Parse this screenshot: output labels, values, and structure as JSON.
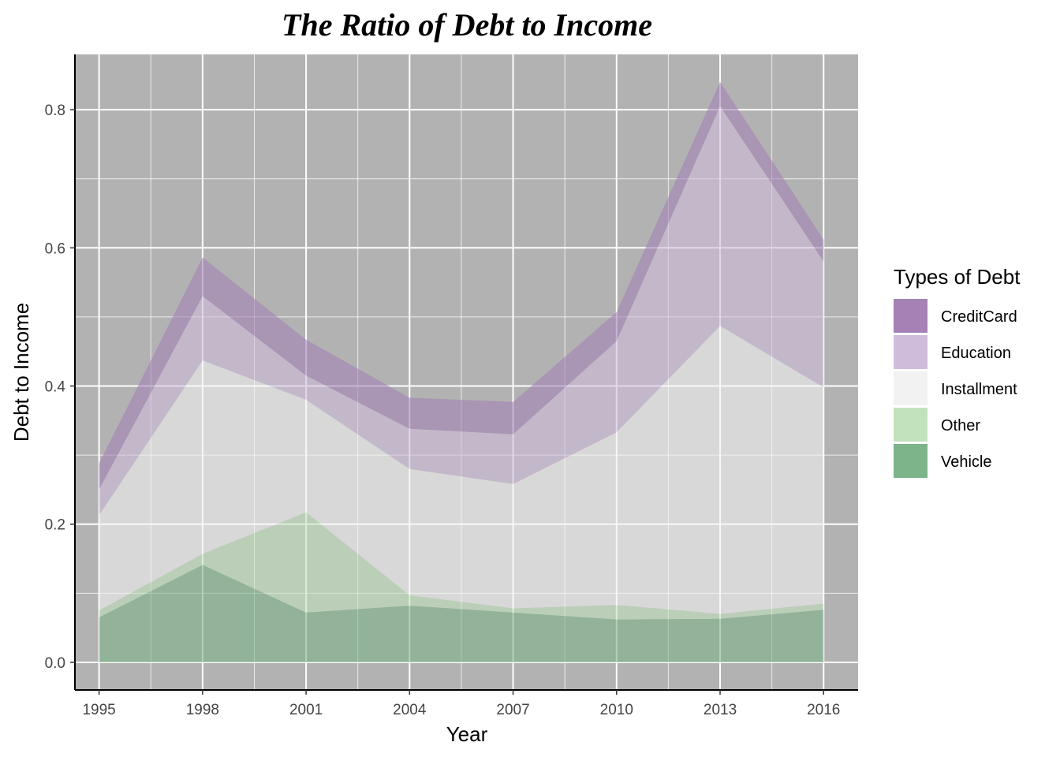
{
  "chart_data": {
    "type": "area",
    "title": "The Ratio of Debt to Income",
    "xlabel": "Year",
    "ylabel": "Debt to Income",
    "x": [
      1995,
      1998,
      2001,
      2004,
      2007,
      2010,
      2013,
      2016
    ],
    "x_tick_labels": [
      "1995",
      "1998",
      "2001",
      "2004",
      "2007",
      "2010",
      "2013",
      "2016"
    ],
    "y_ticks": [
      0.0,
      0.2,
      0.4,
      0.6,
      0.8
    ],
    "y_tick_labels": [
      "0.0",
      "0.2",
      "0.4",
      "0.6",
      "0.8"
    ],
    "xlim": [
      1994.3,
      2017.0
    ],
    "ylim": [
      -0.04,
      0.88
    ],
    "grid": true,
    "panel_background": "#b2b2b2",
    "legend": {
      "title": "Types of Debt",
      "position": "right"
    },
    "series": [
      {
        "name": "CreditCard",
        "color": "#a482b6",
        "lower": [
          0.25,
          0.53,
          0.415,
          0.338,
          0.33,
          0.465,
          0.805,
          0.58
        ],
        "upper": [
          0.288,
          0.586,
          0.467,
          0.383,
          0.377,
          0.507,
          0.84,
          0.612
        ]
      },
      {
        "name": "Education",
        "color": "#cfbcda",
        "lower": [
          0.213,
          0.437,
          0.38,
          0.28,
          0.258,
          0.333,
          0.487,
          0.398
        ],
        "upper": [
          0.25,
          0.53,
          0.415,
          0.338,
          0.33,
          0.465,
          0.805,
          0.58
        ]
      },
      {
        "name": "Installment",
        "color": "#f2f2f2",
        "lower": [
          0.075,
          0.157,
          0.217,
          0.097,
          0.078,
          0.083,
          0.07,
          0.085
        ],
        "upper": [
          0.213,
          0.437,
          0.38,
          0.28,
          0.258,
          0.333,
          0.487,
          0.398
        ]
      },
      {
        "name": "Other",
        "color": "#c2e2bd",
        "lower": [
          0.065,
          0.141,
          0.072,
          0.082,
          0.072,
          0.062,
          0.063,
          0.076
        ],
        "upper": [
          0.075,
          0.157,
          0.217,
          0.097,
          0.078,
          0.083,
          0.07,
          0.085
        ]
      },
      {
        "name": "Vehicle",
        "color": "#7db489",
        "lower": [
          0,
          0,
          0,
          0,
          0,
          0,
          0,
          0
        ],
        "upper": [
          0.065,
          0.141,
          0.072,
          0.082,
          0.072,
          0.062,
          0.063,
          0.076
        ]
      }
    ]
  }
}
